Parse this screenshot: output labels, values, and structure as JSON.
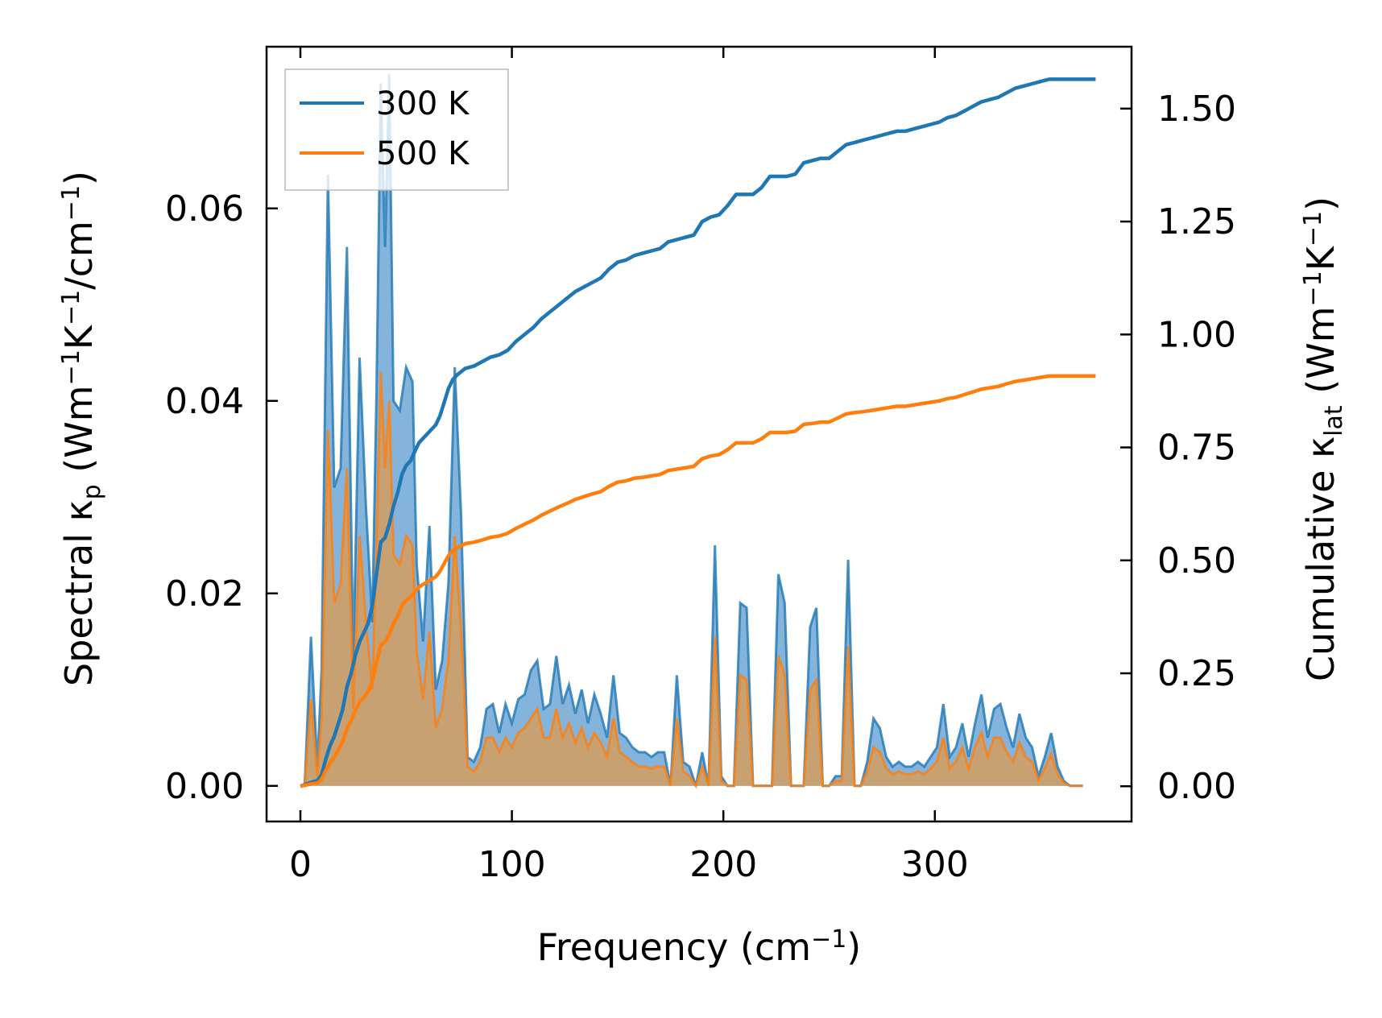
{
  "chart_data": {
    "type": "line",
    "title": "",
    "xlabel": "Frequency (cm",
    "xlabel_sup": "−1",
    "xlabel_end": ")",
    "ylabel_left": {
      "prefix": "Spectral κ",
      "sub": "p",
      "unit": " (Wm",
      "sup1": "−1",
      "k": "K",
      "sup2": "−1",
      "mid": "/cm",
      "sup3": "−1",
      "end": ")"
    },
    "ylabel_right": {
      "prefix": "Cumulative κ",
      "sub": "lat",
      "unit": " (Wm",
      "sup1": "−1",
      "k": "K",
      "sup2": "−1",
      "end": ")"
    },
    "xlim": [
      -16,
      393
    ],
    "ylim_left": [
      -0.0037,
      0.0768
    ],
    "ylim_right": [
      -0.078,
      1.637
    ],
    "x_ticks": [
      0,
      100,
      200,
      300
    ],
    "x_tick_labels": [
      "0",
      "100",
      "200",
      "300"
    ],
    "y_left_ticks": [
      0,
      0.02,
      0.04,
      0.06
    ],
    "y_left_tick_labels": [
      "0.00",
      "0.02",
      "0.04",
      "0.06"
    ],
    "y_right_ticks": [
      0,
      0.25,
      0.5,
      0.75,
      1.0,
      1.25,
      1.5
    ],
    "y_right_tick_labels": [
      "0.00",
      "0.25",
      "0.50",
      "0.75",
      "1.00",
      "1.25",
      "1.50"
    ],
    "legend": {
      "position": "top-left",
      "entries": [
        "300 K",
        "500 K"
      ]
    },
    "colors": {
      "s300": "#1f77b4",
      "s500": "#ff7f0e",
      "fill300": "#5b9bd0",
      "fill500": "#c8a173"
    },
    "spectral_x": [
      0,
      2,
      5,
      8,
      10,
      13,
      16,
      19,
      22,
      25,
      28,
      31,
      34,
      36,
      38,
      40,
      42,
      44,
      47,
      50,
      53,
      55,
      58,
      61,
      64,
      67,
      70,
      73,
      76,
      79,
      82,
      85,
      88,
      91,
      94,
      97,
      100,
      103,
      106,
      109,
      112,
      115,
      118,
      121,
      124,
      127,
      130,
      133,
      136,
      139,
      142,
      145,
      148,
      151,
      154,
      157,
      160,
      163,
      166,
      169,
      172,
      175,
      178,
      181,
      184,
      187,
      190,
      193,
      196,
      199,
      202,
      205,
      208,
      211,
      214,
      217,
      220,
      223,
      226,
      229,
      232,
      235,
      238,
      241,
      244,
      247,
      250,
      253,
      256,
      259,
      262,
      265,
      268,
      271,
      274,
      277,
      280,
      283,
      286,
      289,
      292,
      295,
      298,
      301,
      304,
      307,
      310,
      313,
      316,
      319,
      322,
      325,
      328,
      331,
      334,
      337,
      340,
      343,
      346,
      349,
      352,
      355,
      358,
      361,
      364,
      367,
      370,
      373,
      376
    ],
    "series": [
      {
        "name": "300 K",
        "axis": "left",
        "values": [
          0,
          0,
          0.0155,
          0.002,
          0.012,
          0.0635,
          0.031,
          0.033,
          0.056,
          0.013,
          0.0445,
          0.029,
          0.017,
          0.041,
          0.073,
          0.056,
          0.074,
          0.04,
          0.039,
          0.0435,
          0.042,
          0.023,
          0.015,
          0.027,
          0.01,
          0.013,
          0.021,
          0.0435,
          0.028,
          0.003,
          0.0025,
          0.004,
          0.008,
          0.0085,
          0.0055,
          0.0085,
          0.0065,
          0.009,
          0.0095,
          0.012,
          0.013,
          0.008,
          0.0085,
          0.0135,
          0.0085,
          0.0105,
          0.0075,
          0.01,
          0.0065,
          0.0095,
          0.0075,
          0.005,
          0.0115,
          0.0055,
          0.005,
          0.004,
          0.0035,
          0.0035,
          0.003,
          0.0035,
          0.0035,
          0,
          0.0115,
          0.0025,
          0.002,
          0,
          0.0035,
          0,
          0.025,
          0.001,
          0,
          0,
          0.019,
          0.0185,
          0,
          0,
          0,
          0,
          0.022,
          0.019,
          0,
          0,
          0,
          0.0165,
          0.0185,
          0,
          0,
          0.001,
          0.001,
          0.0235,
          0,
          0,
          0.0025,
          0.007,
          0.006,
          0.003,
          0.002,
          0.0025,
          0.002,
          0.002,
          0.0025,
          0.002,
          0.003,
          0.004,
          0.0085,
          0.003,
          0.004,
          0.0065,
          0.003,
          0.0065,
          0.0095,
          0.005,
          0.008,
          0.0085,
          0.006,
          0.004,
          0.0075,
          0.005,
          0.004,
          0.001,
          0.003,
          0.0055,
          0.002,
          0.0005,
          0,
          0,
          0
        ]
      },
      {
        "name": "500 K",
        "axis": "left",
        "values": [
          0,
          0,
          0.009,
          0.001,
          0.007,
          0.037,
          0.019,
          0.021,
          0.033,
          0.008,
          0.026,
          0.017,
          0.01,
          0.025,
          0.043,
          0.033,
          0.04,
          0.024,
          0.023,
          0.026,
          0.025,
          0.014,
          0.009,
          0.016,
          0.006,
          0.008,
          0.013,
          0.026,
          0.016,
          0.002,
          0.0015,
          0.0025,
          0.005,
          0.005,
          0.0035,
          0.005,
          0.004,
          0.0055,
          0.006,
          0.007,
          0.008,
          0.005,
          0.005,
          0.008,
          0.005,
          0.0065,
          0.0045,
          0.006,
          0.004,
          0.0055,
          0.0045,
          0.003,
          0.007,
          0.0035,
          0.003,
          0.0025,
          0.002,
          0.002,
          0.0018,
          0.002,
          0.002,
          0,
          0.007,
          0.0015,
          0.001,
          0,
          0.002,
          0,
          0.0155,
          0.0005,
          0,
          0,
          0.0115,
          0.011,
          0,
          0,
          0,
          0,
          0.0135,
          0.0115,
          0,
          0,
          0,
          0.01,
          0.011,
          0,
          0,
          0.0005,
          0.0005,
          0.0145,
          0,
          0,
          0.0015,
          0.004,
          0.0035,
          0.0018,
          0.0012,
          0.0015,
          0.0012,
          0.0012,
          0.0015,
          0.0012,
          0.0018,
          0.0025,
          0.005,
          0.0018,
          0.0025,
          0.004,
          0.0018,
          0.004,
          0.0055,
          0.003,
          0.005,
          0.005,
          0.0035,
          0.0025,
          0.0045,
          0.003,
          0.0025,
          0.0006,
          0.0018,
          0.0033,
          0.0012,
          0.0003,
          0,
          0,
          0
        ]
      },
      {
        "name": "300 K cumulative",
        "axis": "right",
        "x": [
          0,
          3,
          6,
          8,
          10,
          12,
          14,
          16,
          18,
          20,
          22,
          24,
          26,
          28,
          30,
          32,
          34,
          36,
          38,
          40,
          42,
          44,
          46,
          48,
          50,
          52,
          54,
          56,
          58,
          60,
          62,
          64,
          66,
          68,
          70,
          72,
          74,
          78,
          82,
          86,
          90,
          94,
          98,
          102,
          106,
          110,
          114,
          118,
          122,
          126,
          130,
          134,
          138,
          142,
          146,
          150,
          154,
          158,
          162,
          166,
          170,
          174,
          178,
          182,
          186,
          190,
          194,
          198,
          202,
          206,
          210,
          214,
          218,
          222,
          226,
          230,
          234,
          238,
          242,
          246,
          250,
          254,
          258,
          262,
          266,
          270,
          274,
          278,
          282,
          286,
          290,
          294,
          298,
          302,
          306,
          310,
          314,
          318,
          322,
          326,
          330,
          334,
          338,
          342,
          346,
          350,
          354,
          358,
          362,
          366,
          370,
          376
        ],
        "values": [
          0,
          0.005,
          0.01,
          0.012,
          0.025,
          0.06,
          0.09,
          0.11,
          0.14,
          0.17,
          0.22,
          0.25,
          0.29,
          0.32,
          0.34,
          0.36,
          0.4,
          0.47,
          0.54,
          0.55,
          0.58,
          0.62,
          0.65,
          0.69,
          0.71,
          0.72,
          0.74,
          0.76,
          0.77,
          0.78,
          0.79,
          0.8,
          0.82,
          0.85,
          0.88,
          0.9,
          0.91,
          0.925,
          0.93,
          0.94,
          0.95,
          0.955,
          0.965,
          0.985,
          1.0,
          1.015,
          1.035,
          1.05,
          1.065,
          1.08,
          1.095,
          1.105,
          1.115,
          1.125,
          1.145,
          1.16,
          1.165,
          1.175,
          1.18,
          1.185,
          1.19,
          1.205,
          1.21,
          1.215,
          1.22,
          1.25,
          1.26,
          1.265,
          1.285,
          1.31,
          1.31,
          1.31,
          1.325,
          1.35,
          1.35,
          1.35,
          1.355,
          1.38,
          1.385,
          1.39,
          1.39,
          1.405,
          1.42,
          1.425,
          1.43,
          1.435,
          1.44,
          1.445,
          1.45,
          1.45,
          1.455,
          1.46,
          1.465,
          1.47,
          1.48,
          1.485,
          1.495,
          1.505,
          1.515,
          1.52,
          1.525,
          1.535,
          1.545,
          1.55,
          1.555,
          1.56,
          1.565,
          1.565,
          1.565,
          1.565,
          1.565,
          1.565
        ]
      },
      {
        "name": "500 K cumulative",
        "axis": "right",
        "x": [
          0,
          3,
          6,
          8,
          10,
          12,
          14,
          16,
          18,
          20,
          22,
          24,
          26,
          28,
          30,
          32,
          34,
          36,
          38,
          40,
          42,
          44,
          46,
          48,
          50,
          52,
          54,
          56,
          58,
          60,
          62,
          64,
          66,
          68,
          70,
          72,
          74,
          78,
          82,
          86,
          90,
          94,
          98,
          102,
          106,
          110,
          114,
          118,
          122,
          126,
          130,
          134,
          138,
          142,
          146,
          150,
          154,
          158,
          162,
          166,
          170,
          174,
          178,
          182,
          186,
          190,
          194,
          198,
          202,
          206,
          210,
          214,
          218,
          222,
          226,
          230,
          234,
          238,
          242,
          246,
          250,
          254,
          258,
          262,
          266,
          270,
          274,
          278,
          282,
          286,
          290,
          294,
          298,
          302,
          306,
          310,
          314,
          318,
          322,
          326,
          330,
          334,
          338,
          342,
          346,
          350,
          354,
          358,
          362,
          366,
          370,
          376
        ],
        "values": [
          0,
          0.003,
          0.006,
          0.007,
          0.015,
          0.035,
          0.052,
          0.064,
          0.081,
          0.099,
          0.128,
          0.145,
          0.168,
          0.186,
          0.197,
          0.209,
          0.232,
          0.273,
          0.313,
          0.319,
          0.336,
          0.36,
          0.377,
          0.4,
          0.412,
          0.418,
          0.429,
          0.441,
          0.447,
          0.452,
          0.458,
          0.464,
          0.476,
          0.493,
          0.51,
          0.522,
          0.527,
          0.537,
          0.54,
          0.545,
          0.551,
          0.554,
          0.56,
          0.571,
          0.58,
          0.589,
          0.6,
          0.609,
          0.618,
          0.626,
          0.635,
          0.641,
          0.647,
          0.652,
          0.664,
          0.673,
          0.676,
          0.682,
          0.684,
          0.687,
          0.69,
          0.699,
          0.702,
          0.705,
          0.708,
          0.725,
          0.731,
          0.734,
          0.745,
          0.76,
          0.76,
          0.76,
          0.769,
          0.783,
          0.783,
          0.783,
          0.786,
          0.801,
          0.803,
          0.806,
          0.806,
          0.815,
          0.824,
          0.827,
          0.829,
          0.832,
          0.835,
          0.838,
          0.841,
          0.841,
          0.844,
          0.847,
          0.85,
          0.853,
          0.858,
          0.861,
          0.867,
          0.873,
          0.879,
          0.882,
          0.885,
          0.891,
          0.896,
          0.899,
          0.902,
          0.905,
          0.908,
          0.908,
          0.908,
          0.908,
          0.908,
          0.908
        ]
      }
    ]
  }
}
